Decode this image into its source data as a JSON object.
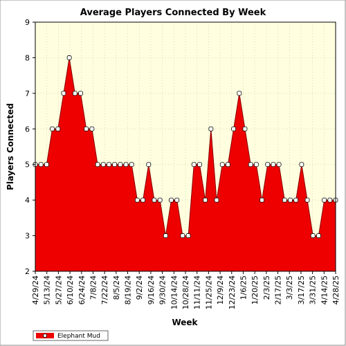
{
  "chart_data": {
    "type": "area",
    "title": "Average Players Connected By Week",
    "xlabel": "Week",
    "ylabel": "Players Connected",
    "ylim": [
      2,
      9
    ],
    "yticks": [
      2,
      3,
      4,
      5,
      6,
      7,
      8,
      9
    ],
    "grid": true,
    "legend_position": "bottom-left",
    "x_tick_labels": [
      "4/29/24",
      "5/13/24",
      "5/27/24",
      "6/10/24",
      "6/24/24",
      "7/8/24",
      "7/22/24",
      "8/5/24",
      "8/19/24",
      "9/2/24",
      "9/16/24",
      "9/30/24",
      "10/14/24",
      "10/28/24",
      "11/11/24",
      "11/25/24",
      "12/9/24",
      "12/23/24",
      "1/6/25",
      "1/20/25",
      "2/3/25",
      "2/17/25",
      "3/3/25",
      "3/17/25",
      "3/31/25",
      "4/14/25",
      "4/28/25"
    ],
    "series": [
      {
        "name": "Elephant Mud",
        "color": "#ee0000",
        "values": [
          5,
          5,
          5,
          6,
          6,
          7,
          8,
          7,
          7,
          6,
          6,
          5,
          5,
          5,
          5,
          5,
          5,
          5,
          4,
          4,
          5,
          4,
          4,
          3,
          4,
          4,
          3,
          3,
          5,
          5,
          4,
          6,
          4,
          5,
          5,
          6,
          7,
          6,
          5,
          5,
          4,
          5,
          5,
          5,
          4,
          4,
          4,
          5,
          4,
          3,
          3,
          4,
          4,
          4
        ]
      }
    ]
  },
  "colors": {
    "plot_background": "#ffffe0",
    "area_fill": "#ee0000",
    "line": "#880000",
    "grid": "#c8c8a0"
  }
}
